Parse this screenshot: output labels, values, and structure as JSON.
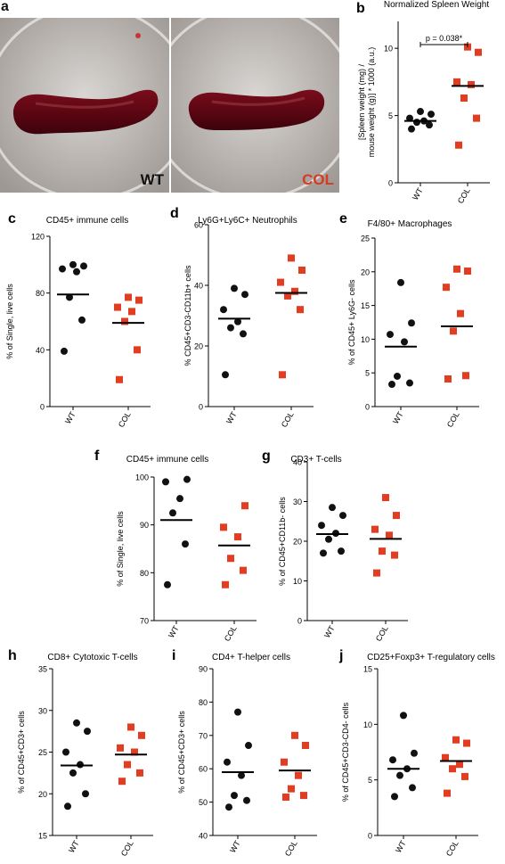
{
  "panel_a": {
    "letter": "a",
    "photos": [
      {
        "label": "WT",
        "label_color": "#111111"
      },
      {
        "label": "COL",
        "label_color": "#d53a23"
      }
    ]
  },
  "colors": {
    "wt": "#111111",
    "col": "#e23c21",
    "mean_line": "#000000"
  },
  "chart_data": [
    {
      "id": "b",
      "letter": "b",
      "type": "scatter",
      "title": "Normalized Spleen Weight",
      "ylabel": "[Spleen weight (mg) / mouse weight (g)] * 1000 (a.u.)",
      "categories": [
        "WT",
        "COL"
      ],
      "ylim": [
        0,
        12
      ],
      "yticks": [
        0,
        5,
        10
      ],
      "series": [
        {
          "name": "WT",
          "values": [
            4.0,
            4.3,
            4.5,
            4.6,
            4.8,
            5.1,
            5.3
          ],
          "mean": 4.6
        },
        {
          "name": "COL",
          "values": [
            2.8,
            4.8,
            6.3,
            7.3,
            7.5,
            9.7,
            10.1
          ],
          "mean": 7.2
        }
      ],
      "annotation": "p = 0.038*"
    },
    {
      "id": "c",
      "letter": "c",
      "type": "scatter",
      "title": "CD45+ immune cells",
      "ylabel": "% of Single, live cells",
      "categories": [
        "WT",
        "COL"
      ],
      "ylim": [
        0,
        120
      ],
      "yticks": [
        0,
        40,
        80,
        120
      ],
      "series": [
        {
          "name": "WT",
          "values": [
            39,
            61,
            77,
            95,
            97,
            99,
            100
          ],
          "mean": 79
        },
        {
          "name": "COL",
          "values": [
            19,
            40,
            60,
            67,
            70,
            75,
            77
          ],
          "mean": 59
        }
      ]
    },
    {
      "id": "d",
      "letter": "d",
      "type": "scatter",
      "title": "Ly6G+Ly6C+ Neutrophils",
      "ylabel": "% CD45+CD3-CD11b+ cells",
      "categories": [
        "WT",
        "COL"
      ],
      "ylim": [
        0,
        60
      ],
      "yticks": [
        0,
        20,
        40,
        60
      ],
      "series": [
        {
          "name": "WT",
          "values": [
            10.5,
            24,
            26,
            28,
            32,
            37,
            39
          ],
          "mean": 29
        },
        {
          "name": "COL",
          "values": [
            10.5,
            32,
            36.5,
            38,
            41,
            45,
            49
          ],
          "mean": 37.5
        }
      ]
    },
    {
      "id": "e",
      "letter": "e",
      "type": "scatter",
      "title": "F4/80+ Macrophages",
      "ylabel": "% of CD45+ Ly6G- cells",
      "categories": [
        "WT",
        "COL"
      ],
      "ylim": [
        0,
        25
      ],
      "yticks": [
        0,
        5,
        10,
        15,
        20,
        25
      ],
      "series": [
        {
          "name": "WT",
          "values": [
            3.3,
            3.5,
            4.5,
            9.6,
            10.7,
            12.4,
            18.4
          ],
          "mean": 8.9
        },
        {
          "name": "COL",
          "values": [
            4.1,
            4.6,
            11.2,
            13.8,
            17.7,
            20.1,
            20.4
          ],
          "mean": 11.9
        }
      ]
    },
    {
      "id": "f",
      "letter": "f",
      "type": "scatter",
      "title": "CD45+ immune cells",
      "ylabel": "% of Single, live cells",
      "categories": [
        "WT",
        "COL"
      ],
      "ylim": [
        70,
        100
      ],
      "yticks": [
        70,
        80,
        90,
        100
      ],
      "series": [
        {
          "name": "WT",
          "values": [
            77.5,
            86,
            92.5,
            95.5,
            99,
            99.5
          ],
          "mean": 91
        },
        {
          "name": "COL",
          "values": [
            77.5,
            80.5,
            83,
            87.5,
            89.5,
            94
          ],
          "mean": 85.7
        }
      ]
    },
    {
      "id": "g",
      "letter": "g",
      "type": "scatter",
      "title": "CD3+ T-cells",
      "ylabel": "% of CD45+CD11b- cells",
      "categories": [
        "WT",
        "COL"
      ],
      "ylim": [
        0,
        40
      ],
      "yticks": [
        0,
        10,
        20,
        30,
        40
      ],
      "series": [
        {
          "name": "WT",
          "values": [
            17,
            17.5,
            20.5,
            22,
            24,
            26.5,
            28.5
          ],
          "mean": 21.8
        },
        {
          "name": "COL",
          "values": [
            12,
            16.5,
            17.5,
            21.5,
            23,
            26.5,
            31
          ],
          "mean": 20.6
        }
      ]
    },
    {
      "id": "h",
      "letter": "h",
      "type": "scatter",
      "title": "CD8+ Cytotoxic T-cells",
      "ylabel": "% of CD45+CD3+ cells",
      "categories": [
        "WT",
        "COL"
      ],
      "ylim": [
        15,
        35
      ],
      "yticks": [
        15,
        20,
        25,
        30,
        35
      ],
      "series": [
        {
          "name": "WT",
          "values": [
            18.5,
            20,
            22.5,
            23.5,
            25,
            27.5,
            28.5
          ],
          "mean": 23.4
        },
        {
          "name": "COL",
          "values": [
            21.5,
            22.5,
            23.5,
            25,
            25.5,
            27,
            28
          ],
          "mean": 24.7
        }
      ]
    },
    {
      "id": "i",
      "letter": "i",
      "type": "scatter",
      "title": "CD4+ T-helper cells",
      "ylabel": "% of CD45+CD3+ cells",
      "categories": [
        "WT",
        "COL"
      ],
      "ylim": [
        40,
        90
      ],
      "yticks": [
        40,
        50,
        60,
        70,
        80,
        90
      ],
      "series": [
        {
          "name": "WT",
          "values": [
            48.5,
            50.5,
            52,
            58,
            62,
            67,
            77
          ],
          "mean": 59
        },
        {
          "name": "COL",
          "values": [
            51.5,
            52,
            54,
            58,
            62,
            67,
            70
          ],
          "mean": 59.5
        }
      ]
    },
    {
      "id": "j",
      "letter": "j",
      "type": "scatter",
      "title": "CD25+Foxp3+ T-regulatory cells",
      "ylabel": "% of CD45+CD3-CD4- cells",
      "categories": [
        "WT",
        "COL"
      ],
      "ylim": [
        0,
        15
      ],
      "yticks": [
        0,
        5,
        10,
        15
      ],
      "series": [
        {
          "name": "WT",
          "values": [
            3.5,
            4.3,
            5.4,
            6.0,
            6.8,
            7.4,
            10.8
          ],
          "mean": 6.0
        },
        {
          "name": "COL",
          "values": [
            3.8,
            5.3,
            6.0,
            6.4,
            7.0,
            8.3,
            8.6
          ],
          "mean": 6.7
        }
      ]
    }
  ]
}
